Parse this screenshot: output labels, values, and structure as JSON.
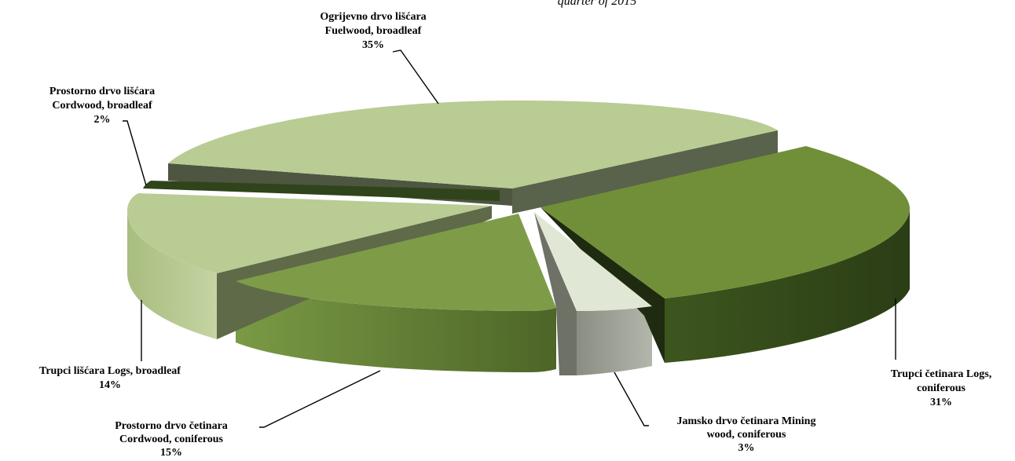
{
  "chart_data": {
    "type": "pie",
    "title_fragment": "quarter of 2015",
    "colors": {
      "light": "#b9cc93",
      "dark_green": "#6e8d3a",
      "mid_green": "#7e9c47",
      "pale": "#dfe6d2",
      "darkest": "#2f441a"
    },
    "slices": [
      {
        "name": "Ogrijevno drvo lišćara Fuelwood, broadleaf",
        "lines": [
          "Ogrijevno drvo lišćara",
          "Fuelwood, broadleaf"
        ],
        "value": 35,
        "pct": "35%"
      },
      {
        "name": "Trupci četinara Logs, coniferous",
        "lines": [
          "Trupci  četinara Logs,",
          "coniferous"
        ],
        "value": 31,
        "pct": "31%"
      },
      {
        "name": "Jamsko drvo četinara Mining wood, coniferous",
        "lines": [
          "Jamsko drvo četinara Mining",
          "wood, coniferous"
        ],
        "value": 3,
        "pct": "3%"
      },
      {
        "name": "Prostorno drvo četinara Cordwood, coniferous",
        "lines": [
          "Prostorno drvo četinara",
          "Cordwood, coniferous"
        ],
        "value": 15,
        "pct": "15%"
      },
      {
        "name": "Trupci lišćara Logs, broadleaf",
        "lines": [
          "Trupci  lišćara Logs, broadleaf"
        ],
        "value": 14,
        "pct": "14%"
      },
      {
        "name": "Prostorno drvo lišćara Cordwood, broadleaf",
        "lines": [
          "Prostorno drvo lišćara",
          "Cordwood, broadleaf"
        ],
        "value": 2,
        "pct": "2%"
      }
    ]
  }
}
